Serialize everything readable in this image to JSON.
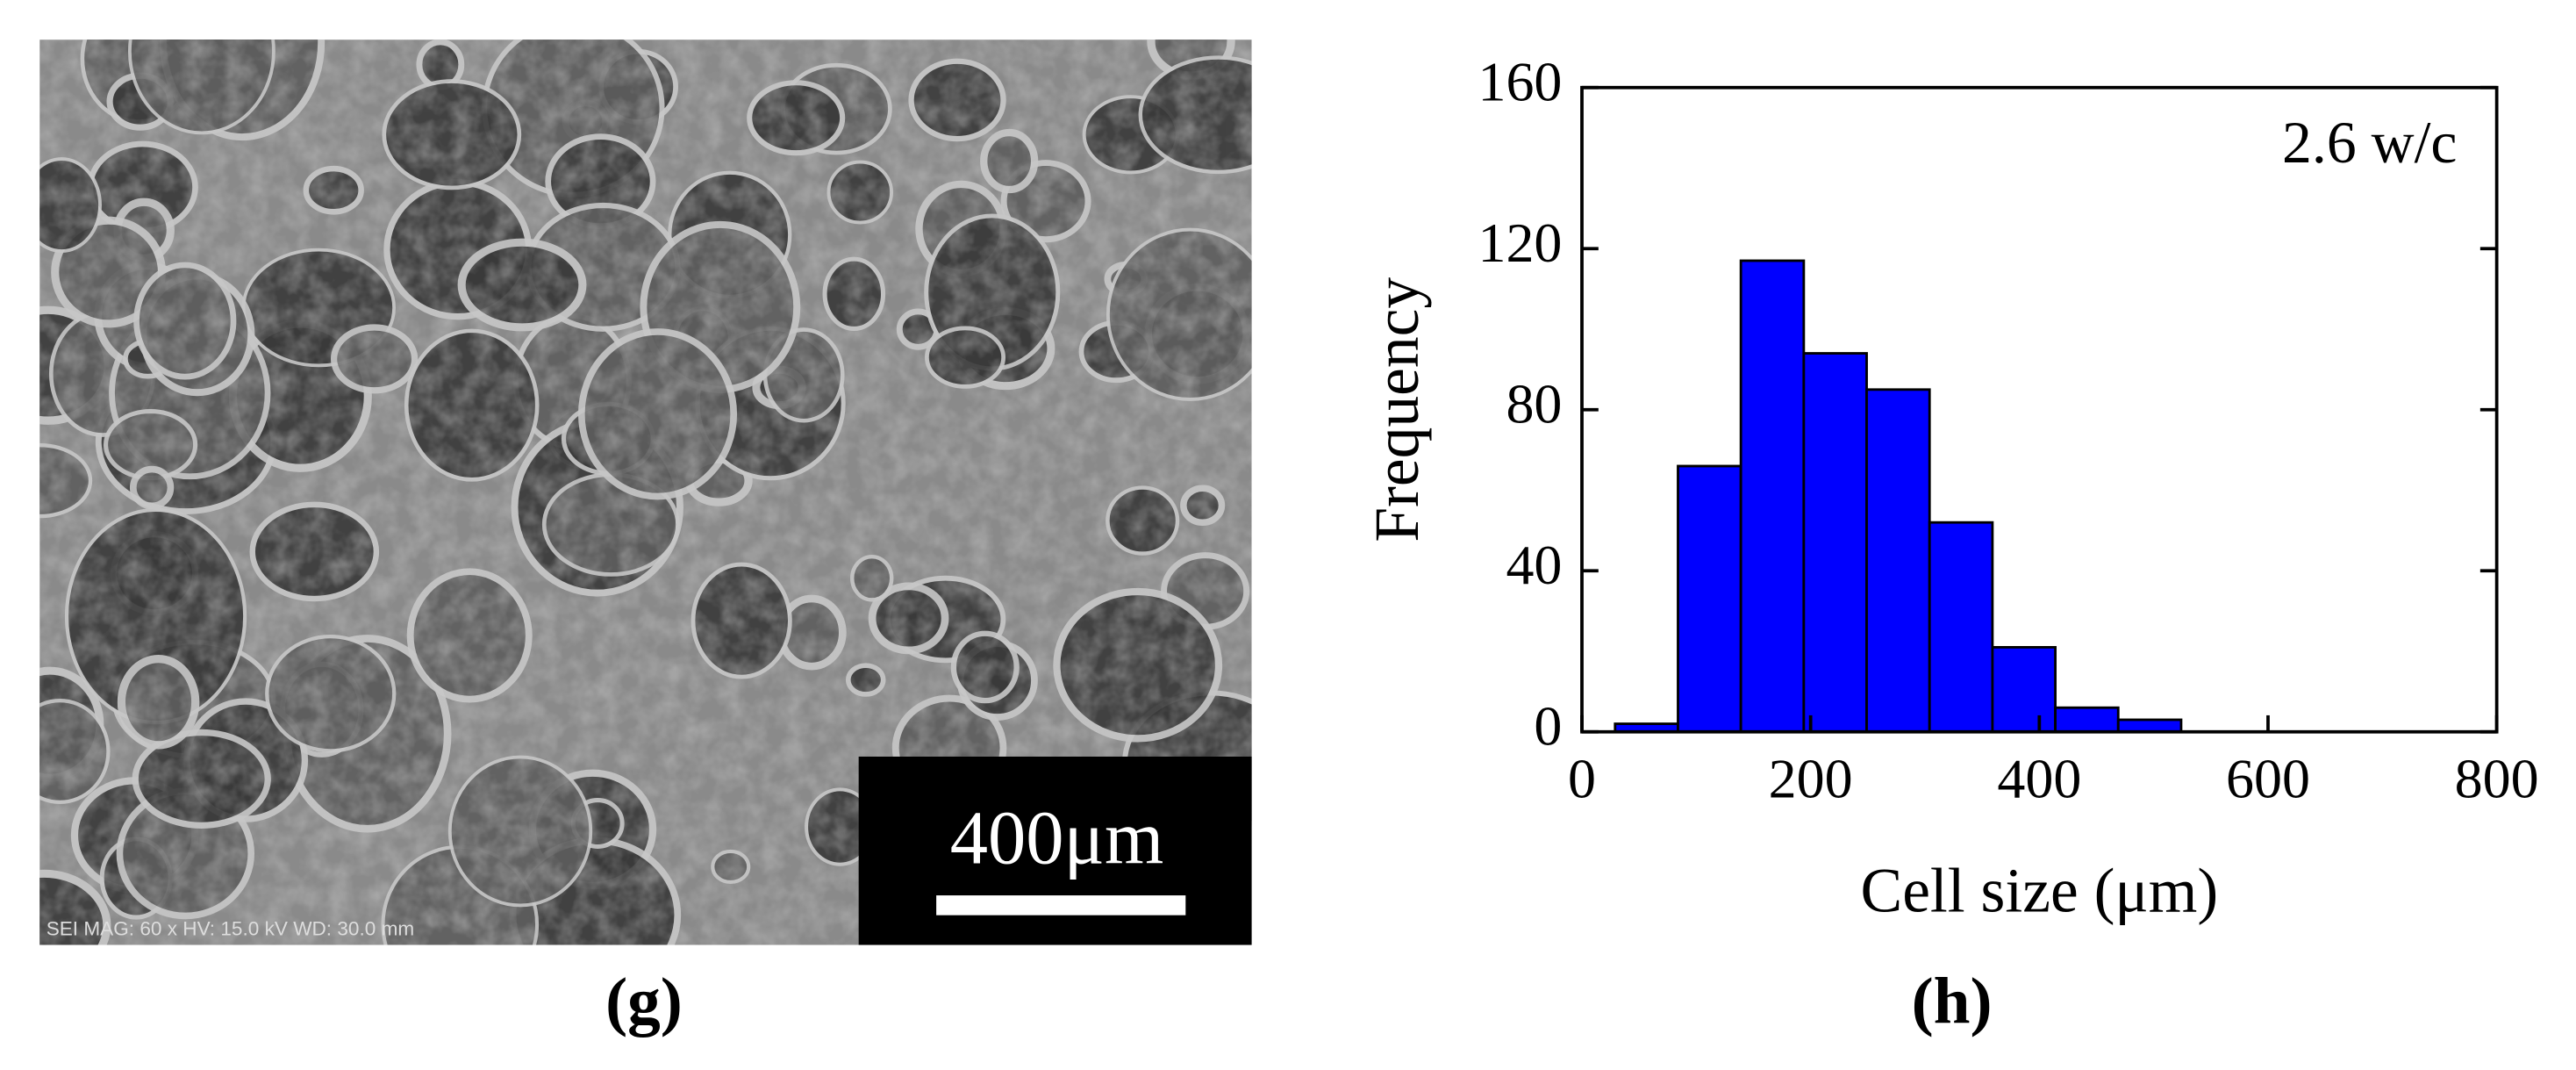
{
  "panels": {
    "g": {
      "caption": "(g)",
      "scale_bar": "400μm",
      "info": "SEI MAG: 60 x HV: 15.0 kV WD: 30.0 mm"
    },
    "h": {
      "caption": "(h)"
    }
  },
  "chart_data": {
    "type": "histogram",
    "x_label": "Cell size (μm)",
    "y_label": "Frequency",
    "annotation": "2.6 w/c",
    "bins": [
      29,
      84,
      139,
      194,
      249,
      304,
      359,
      414,
      469,
      524
    ],
    "values": [
      2,
      66,
      117,
      94,
      85,
      52,
      21,
      6,
      3
    ],
    "color": "#0000ff",
    "xlim": [
      0,
      800
    ],
    "xticks": [
      0,
      200,
      400,
      600,
      800
    ],
    "ylim": [
      0,
      160
    ],
    "yticks": [
      0,
      40,
      80,
      120,
      160
    ]
  }
}
